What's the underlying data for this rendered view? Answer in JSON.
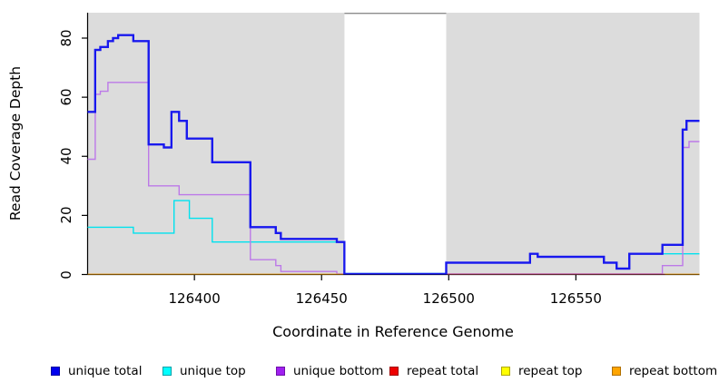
{
  "figure": {
    "x_axis_title": "Coordinate in Reference Genome",
    "y_axis_title": "Read Coverage Depth"
  },
  "legend": {
    "items": [
      {
        "label": "unique total",
        "color": "#0000EE",
        "border": "#0000A0"
      },
      {
        "label": "unique top",
        "color": "#00FFFF",
        "border": "#00A0A8"
      },
      {
        "label": "unique bottom",
        "color": "#A020F0",
        "border": "#6E10A8"
      },
      {
        "label": "repeat total",
        "color": "#EE0000",
        "border": "#A00000"
      },
      {
        "label": "repeat top",
        "color": "#FFFF00",
        "border": "#B0A800"
      },
      {
        "label": "repeat bottom",
        "color": "#FFA500",
        "border": "#B07000"
      }
    ]
  },
  "chart_data": {
    "type": "line",
    "subtype": "step-coverage",
    "title": "",
    "xlabel": "Coordinate in Reference Genome",
    "ylabel": "Read Coverage Depth",
    "xlim": [
      126358,
      126598.6
    ],
    "ylim": [
      0,
      88.6
    ],
    "xticks": [
      126400,
      126450,
      126500,
      126550
    ],
    "yticks": [
      0,
      20,
      40,
      60,
      80
    ],
    "grid": false,
    "legend_position": "bottom",
    "plot_background_color": "#DCDCDC",
    "gap_region": {
      "from": 126459,
      "to": 126499,
      "color": "#FFFFFF",
      "top_edge_color": "#8C8C8C"
    },
    "covered_regions": [
      {
        "from": 126358,
        "to": 126459
      },
      {
        "from": 126499,
        "to": 126598.6
      }
    ],
    "zero_line_segments": [
      {
        "color": "#FFA500",
        "from": 126358,
        "to": 126459
      },
      {
        "color": "#FFA500",
        "from": 126585,
        "to": 126598.6
      }
    ],
    "red_zero_visible": {
      "color": "#C84A66",
      "from": 126499,
      "to": 126585
    },
    "series": [
      {
        "name": "unique top",
        "color": "#00E2EE",
        "width": 1.4,
        "points": [
          [
            126358,
            16
          ],
          [
            126376,
            14
          ],
          [
            126392,
            25
          ],
          [
            126398,
            19
          ],
          [
            126407,
            11
          ],
          [
            126459,
            0.3
          ],
          [
            126499,
            4
          ],
          [
            126532,
            7
          ],
          [
            126535,
            6
          ],
          [
            126561,
            4
          ],
          [
            126566,
            2
          ],
          [
            126571,
            7
          ]
        ]
      },
      {
        "name": "unique bottom",
        "color": "#BC79E8",
        "width": 1.4,
        "points": [
          [
            126358,
            39
          ],
          [
            126361,
            61
          ],
          [
            126363,
            62
          ],
          [
            126366,
            65
          ],
          [
            126382,
            30
          ],
          [
            126394,
            27
          ],
          [
            126422,
            5
          ],
          [
            126432,
            3
          ],
          [
            126434,
            1
          ],
          [
            126456,
            0.2
          ],
          [
            126584,
            3
          ],
          [
            126592,
            43
          ],
          [
            126594.5,
            45
          ]
        ]
      },
      {
        "name": "repeat top",
        "color": "#FFFF00",
        "width": 1.3,
        "points": [
          [
            126358,
            0
          ]
        ]
      },
      {
        "name": "repeat total",
        "color": "#C84A66",
        "width": 1.3,
        "points": [
          [
            126358,
            0
          ]
        ]
      },
      {
        "name": "repeat bottom",
        "color": "#FFA500",
        "width": 1.6,
        "points": [
          [
            126358,
            0
          ]
        ],
        "render_as_segments": true
      },
      {
        "name": "unique total",
        "color": "#1818EE",
        "width": 2.2,
        "points": [
          [
            126358,
            55
          ],
          [
            126361,
            76
          ],
          [
            126363,
            77
          ],
          [
            126366,
            79
          ],
          [
            126368,
            80
          ],
          [
            126370,
            81
          ],
          [
            126376,
            79
          ],
          [
            126382,
            44
          ],
          [
            126388,
            43
          ],
          [
            126391,
            55
          ],
          [
            126394,
            52
          ],
          [
            126397,
            46
          ],
          [
            126407,
            38
          ],
          [
            126422,
            16
          ],
          [
            126432,
            14
          ],
          [
            126434,
            12
          ],
          [
            126456,
            11
          ],
          [
            126459,
            0.15
          ],
          [
            126499,
            4
          ],
          [
            126532,
            7
          ],
          [
            126535,
            6
          ],
          [
            126561,
            4
          ],
          [
            126566,
            2
          ],
          [
            126571,
            7
          ],
          [
            126584,
            10
          ],
          [
            126592,
            49
          ],
          [
            126593.5,
            52
          ]
        ]
      }
    ]
  }
}
